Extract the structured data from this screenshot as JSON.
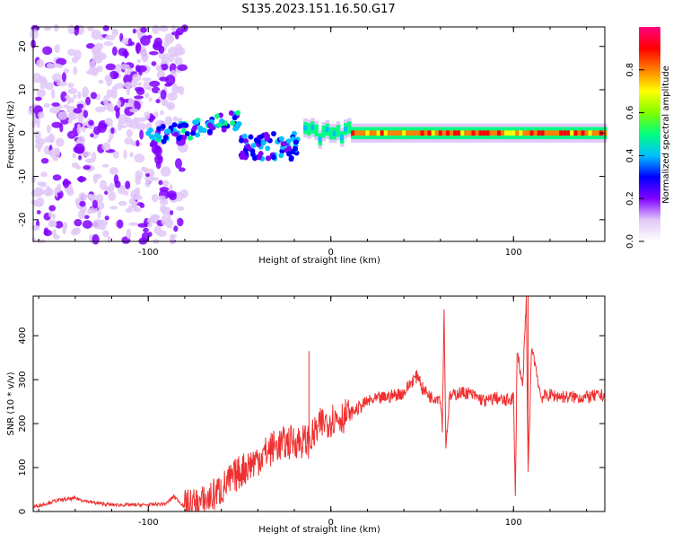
{
  "title": "S135.2023.151.16.50.G17",
  "colors": {
    "snr_line": "#f03030",
    "colormap": [
      "#ffffff",
      "#e0c8f8",
      "#8000ff",
      "#0000ff",
      "#00c0ff",
      "#00ff80",
      "#80ff00",
      "#ffff00",
      "#ff8000",
      "#ff0000",
      "#ff0080"
    ]
  },
  "chart_data": [
    {
      "type": "heatmap",
      "xlabel": "Height of straight line (km)",
      "ylabel": "Frequency (Hz)",
      "xlim": [
        -163,
        150
      ],
      "ylim": [
        -25,
        24.5
      ],
      "xticks": [
        -100,
        0,
        100
      ],
      "yticks": [
        -20,
        -10,
        0,
        10,
        20
      ],
      "colorbar": {
        "label": "Normalized spectral amplitude",
        "range": [
          0,
          1
        ],
        "ticks": [
          "0.0",
          "0.2",
          "0.4",
          "0.6",
          "0.8"
        ],
        "tick_values": [
          0.0,
          0.2,
          0.4,
          0.6,
          0.8
        ]
      },
      "features": [
        {
          "x_range": [
            -163,
            -80
          ],
          "freq_range": [
            -25,
            24.5
          ],
          "amplitude": 0.1
        },
        {
          "x_range": [
            -100,
            -50
          ],
          "freq_range": [
            -2,
            6
          ],
          "amplitude": 0.3
        },
        {
          "x_range": [
            -50,
            -20
          ],
          "freq_range": [
            -6,
            2
          ],
          "amplitude": 0.25
        },
        {
          "x_range": [
            -15,
            150
          ],
          "freq_center": 0,
          "amplitude": 0.9
        }
      ]
    },
    {
      "type": "line",
      "xlabel": "Height of straight line (km)",
      "ylabel": "SNR (10 * v/v)",
      "xlim": [
        -163,
        150
      ],
      "ylim": [
        0,
        490
      ],
      "xticks": [
        -100,
        0,
        100
      ],
      "yticks": [
        0,
        100,
        200,
        300,
        400
      ],
      "series": [
        {
          "x": [
            -163,
            -150,
            -140,
            -130,
            -120,
            -110,
            -100,
            -90,
            -86,
            -80,
            -70,
            -60,
            -50,
            -40,
            -30,
            -20,
            -12,
            -10,
            -5,
            0,
            10,
            20,
            30,
            40,
            45,
            48,
            50,
            55,
            60,
            61,
            62,
            63,
            65,
            70,
            75,
            80,
            85,
            90,
            95,
            100,
            101,
            102,
            105,
            107,
            108,
            110,
            115,
            120,
            130,
            140,
            150
          ],
          "y": [
            10,
            25,
            30,
            20,
            15,
            15,
            15,
            18,
            35,
            10,
            20,
            50,
            90,
            120,
            150,
            160,
            160,
            170,
            200,
            210,
            220,
            250,
            260,
            270,
            300,
            310,
            280,
            260,
            260,
            190,
            460,
            150,
            260,
            270,
            270,
            260,
            250,
            260,
            250,
            260,
            25,
            370,
            280,
            480,
            90,
            380,
            260,
            265,
            260,
            260,
            265
          ]
        }
      ],
      "annotations": [
        {
          "x": -12,
          "y": 365
        },
        {
          "x": 62,
          "y": 460
        },
        {
          "x": 108,
          "y": 490
        },
        {
          "x": 101,
          "y": 25
        }
      ]
    }
  ]
}
